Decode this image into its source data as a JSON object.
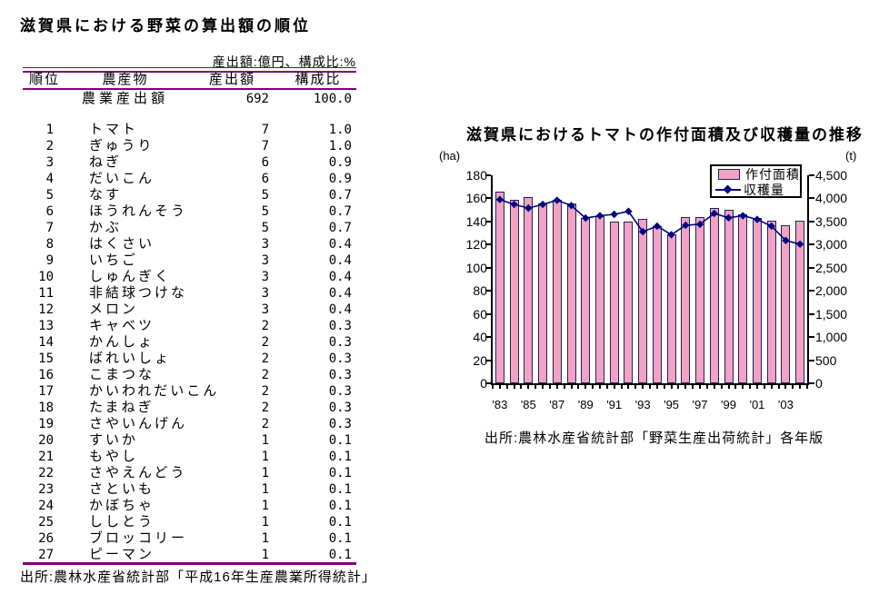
{
  "table_section": {
    "title": "滋賀県における野菜の算出額の順位",
    "units_note": "産出額:億円、構成比:%",
    "columns": [
      "順位",
      "農産物",
      "産出額",
      "構成比"
    ],
    "total_row": {
      "name": "農業産出額",
      "value": "692",
      "share": "100.0"
    },
    "rows": [
      [
        "1",
        "トマト",
        "7",
        "1.0"
      ],
      [
        "2",
        "ぎゅうり",
        "7",
        "1.0"
      ],
      [
        "3",
        "ねぎ",
        "6",
        "0.9"
      ],
      [
        "4",
        "だいこん",
        "6",
        "0.9"
      ],
      [
        "5",
        "なす",
        "5",
        "0.7"
      ],
      [
        "6",
        "ほうれんそう",
        "5",
        "0.7"
      ],
      [
        "7",
        "かぶ",
        "5",
        "0.7"
      ],
      [
        "8",
        "はくさい",
        "3",
        "0.4"
      ],
      [
        "9",
        "いちご",
        "3",
        "0.4"
      ],
      [
        "10",
        "しゅんぎく",
        "3",
        "0.4"
      ],
      [
        "11",
        "非結球つけな",
        "3",
        "0.4"
      ],
      [
        "12",
        "メロン",
        "3",
        "0.4"
      ],
      [
        "13",
        "キャベツ",
        "2",
        "0.3"
      ],
      [
        "14",
        "かんしょ",
        "2",
        "0.3"
      ],
      [
        "15",
        "ばれいしょ",
        "2",
        "0.3"
      ],
      [
        "16",
        "こまつな",
        "2",
        "0.3"
      ],
      [
        "17",
        "かいわれだいこん",
        "2",
        "0.3"
      ],
      [
        "18",
        "たまねぎ",
        "2",
        "0.3"
      ],
      [
        "19",
        "さやいんげん",
        "2",
        "0.3"
      ],
      [
        "20",
        "すいか",
        "1",
        "0.1"
      ],
      [
        "21",
        "もやし",
        "1",
        "0.1"
      ],
      [
        "22",
        "さやえんどう",
        "1",
        "0.1"
      ],
      [
        "23",
        "さといも",
        "1",
        "0.1"
      ],
      [
        "24",
        "かぼちゃ",
        "1",
        "0.1"
      ],
      [
        "25",
        "ししとう",
        "1",
        "0.1"
      ],
      [
        "26",
        "ブロッコリー",
        "1",
        "0.1"
      ],
      [
        "27",
        "ピーマン",
        "1",
        "0.1"
      ]
    ],
    "source": "出所:農林水産省統計部「平成16年生産農業所得統計」",
    "rule_color": "#800080"
  },
  "chart_section": {
    "title": "滋賀県におけるトマトの作付面積及び収穫量の推移",
    "left_axis_unit": "(ha)",
    "right_axis_unit": "(t)",
    "legend": {
      "bar_label": "作付面積",
      "line_label": "収穫量"
    },
    "source": "出所:農林水産省統計部「野菜生産出荷統計」各年版",
    "colors": {
      "bar_fill": "#F2A3C4",
      "bar_border": "#202060",
      "line": "#000080",
      "axis": "#000000"
    }
  },
  "chart_data": {
    "type": "bar",
    "title": "滋賀県におけるトマトの作付面積及び収穫量の推移",
    "categories": [
      "'83",
      "'84",
      "'85",
      "'86",
      "'87",
      "'88",
      "'89",
      "'90",
      "'91",
      "'92",
      "'93",
      "'94",
      "'95",
      "'96",
      "'97",
      "'98",
      "'99",
      "'00",
      "'01",
      "'02",
      "'03",
      "'04"
    ],
    "x_tick_labels_shown": [
      "'83",
      "'85",
      "'87",
      "'89",
      "'91",
      "'93",
      "'95",
      "'97",
      "'99",
      "'01",
      "'03"
    ],
    "series": [
      {
        "name": "作付面積",
        "type": "bar",
        "axis": "left",
        "unit": "ha",
        "values": [
          166,
          159,
          161,
          156,
          159,
          156,
          143,
          145,
          140,
          140,
          142,
          136,
          129,
          144,
          144,
          152,
          150,
          146,
          143,
          141,
          137,
          141
        ]
      },
      {
        "name": "収穫量",
        "type": "line",
        "axis": "right",
        "unit": "t",
        "values": [
          3975,
          3870,
          3790,
          3870,
          3960,
          3845,
          3575,
          3625,
          3655,
          3720,
          3280,
          3400,
          3215,
          3420,
          3440,
          3675,
          3580,
          3625,
          3545,
          3400,
          3090,
          3010
        ]
      }
    ],
    "left_axis": {
      "unit": "(ha)",
      "min": 0,
      "max": 180,
      "step": 20,
      "tick_labels": [
        "180",
        "160",
        "140",
        "120",
        "100",
        "80",
        "60",
        "40",
        "20",
        "0"
      ]
    },
    "right_axis": {
      "unit": "(t)",
      "min": 0,
      "max": 4500,
      "step": 500,
      "tick_labels": [
        "4,500",
        "4,000",
        "3,500",
        "3,000",
        "2,500",
        "2,000",
        "1,500",
        "1,000",
        "500",
        "0"
      ]
    },
    "legend_position": "top-right",
    "grid": false
  }
}
